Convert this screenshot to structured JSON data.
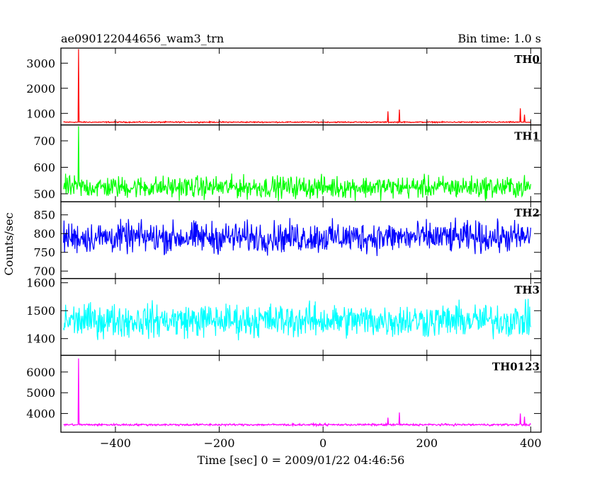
{
  "header": {
    "title": "ae090122044656_wam3_trn",
    "bin_time": "Bin time: 1.0 s"
  },
  "chart_data": {
    "type": "line",
    "xlabel": "Time [sec] 0 = 2009/01/22 04:46:56",
    "ylabel": "Counts/sec",
    "xlim": [
      -505,
      420
    ],
    "x_ticks": [
      -400,
      -200,
      0,
      200,
      400
    ],
    "x_tick_labels": [
      "−400",
      "−200",
      "0",
      "200",
      "400"
    ],
    "x_range_data": [
      -500,
      400
    ],
    "panels": [
      {
        "name": "TH0",
        "color": "#ff0000",
        "ylim": [
          540,
          3600
        ],
        "y_ticks": [
          1000,
          2000,
          3000
        ],
        "y_tick_labels": [
          "1000",
          "2000",
          "3000"
        ],
        "baseline": 650,
        "noise": 22,
        "spikes": [
          {
            "x": -471,
            "y": 3560
          },
          {
            "x": 125,
            "y": 1080
          },
          {
            "x": 147,
            "y": 1150
          },
          {
            "x": 380,
            "y": 1200
          },
          {
            "x": 388,
            "y": 950
          }
        ]
      },
      {
        "name": "TH1",
        "color": "#00ff00",
        "ylim": [
          470,
          760
        ],
        "y_ticks": [
          500,
          600,
          700
        ],
        "y_tick_labels": [
          "500",
          "600",
          "700"
        ],
        "baseline": 525,
        "noise": 38,
        "spikes": [
          {
            "x": -471,
            "y": 755
          }
        ]
      },
      {
        "name": "TH2",
        "color": "#0000ff",
        "ylim": [
          680,
          885
        ],
        "y_ticks": [
          700,
          750,
          800,
          850
        ],
        "y_tick_labels": [
          "700",
          "750",
          "800",
          "850"
        ],
        "baseline": 790,
        "noise": 38,
        "spikes": []
      },
      {
        "name": "TH3",
        "color": "#00ffff",
        "ylim": [
          1340,
          1615
        ],
        "y_ticks": [
          1400,
          1500,
          1600
        ],
        "y_tick_labels": [
          "1400",
          "1500",
          "1600"
        ],
        "baseline": 1465,
        "noise": 55,
        "spikes": []
      },
      {
        "name": "TH0123",
        "color": "#ff00ff",
        "ylim": [
          3100,
          6800
        ],
        "y_ticks": [
          4000,
          5000,
          6000
        ],
        "y_tick_labels": [
          "4000",
          "5000",
          "6000"
        ],
        "baseline": 3460,
        "noise": 45,
        "spikes": [
          {
            "x": -471,
            "y": 6650
          },
          {
            "x": 125,
            "y": 3800
          },
          {
            "x": 147,
            "y": 4050
          },
          {
            "x": 380,
            "y": 4000
          },
          {
            "x": 388,
            "y": 3850
          }
        ]
      }
    ]
  }
}
